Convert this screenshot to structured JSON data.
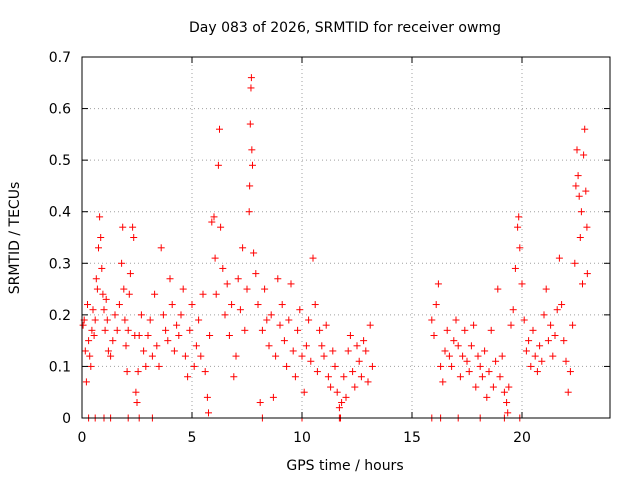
{
  "chart_data": {
    "type": "scatter",
    "title": "Day 083 of 2026, SRMTID for receiver owmg",
    "xlabel": "GPS time / hours",
    "ylabel": "SRMTID / TECUs",
    "xlim": [
      0,
      24
    ],
    "ylim": [
      0,
      0.7
    ],
    "xticks": [
      0,
      5,
      10,
      15,
      20
    ],
    "xtick_labels": [
      "0",
      "5",
      "10",
      "15",
      "20"
    ],
    "yticks": [
      0,
      0.1,
      0.2,
      0.3,
      0.4,
      0.5,
      0.6,
      0.7
    ],
    "ytick_labels": [
      "0",
      "0.1",
      "0.2",
      "0.3",
      "0.4",
      "0.5",
      "0.6",
      "0.7"
    ],
    "grid": true,
    "marker": "+",
    "color": "#ff0000",
    "series": [
      {
        "name": "SRMTID",
        "points": [
          [
            0.05,
            0.18
          ],
          [
            0.1,
            0.19
          ],
          [
            0.15,
            0.13
          ],
          [
            0.2,
            0.07
          ],
          [
            0.25,
            0.22
          ],
          [
            0.3,
            0.15
          ],
          [
            0.35,
            0.12
          ],
          [
            0.4,
            0.1
          ],
          [
            0.45,
            0.17
          ],
          [
            0.5,
            0.21
          ],
          [
            0.55,
            0.16
          ],
          [
            0.6,
            0.19
          ],
          [
            0.65,
            0.27
          ],
          [
            0.7,
            0.25
          ],
          [
            0.75,
            0.33
          ],
          [
            0.8,
            0.39
          ],
          [
            0.85,
            0.35
          ],
          [
            0.9,
            0.29
          ],
          [
            0.95,
            0.24
          ],
          [
            1.0,
            0.21
          ],
          [
            1.05,
            0.17
          ],
          [
            1.1,
            0.23
          ],
          [
            1.15,
            0.19
          ],
          [
            1.2,
            0.13
          ],
          [
            1.3,
            0.12
          ],
          [
            1.4,
            0.15
          ],
          [
            1.5,
            0.2
          ],
          [
            1.6,
            0.17
          ],
          [
            1.7,
            0.22
          ],
          [
            1.8,
            0.3
          ],
          [
            1.85,
            0.37
          ],
          [
            1.9,
            0.25
          ],
          [
            1.95,
            0.19
          ],
          [
            2.0,
            0.14
          ],
          [
            2.05,
            0.09
          ],
          [
            2.1,
            0.17
          ],
          [
            2.15,
            0.24
          ],
          [
            2.2,
            0.28
          ],
          [
            2.3,
            0.37
          ],
          [
            2.35,
            0.35
          ],
          [
            2.4,
            0.16
          ],
          [
            2.45,
            0.05
          ],
          [
            2.5,
            0.03
          ],
          [
            2.55,
            0.09
          ],
          [
            2.6,
            0.16
          ],
          [
            2.7,
            0.2
          ],
          [
            2.8,
            0.13
          ],
          [
            2.9,
            0.1
          ],
          [
            3.0,
            0.16
          ],
          [
            3.1,
            0.19
          ],
          [
            3.2,
            0.12
          ],
          [
            3.3,
            0.24
          ],
          [
            3.4,
            0.14
          ],
          [
            3.5,
            0.1
          ],
          [
            3.6,
            0.33
          ],
          [
            3.7,
            0.2
          ],
          [
            3.8,
            0.17
          ],
          [
            3.9,
            0.15
          ],
          [
            4.0,
            0.27
          ],
          [
            4.1,
            0.22
          ],
          [
            4.2,
            0.13
          ],
          [
            4.3,
            0.18
          ],
          [
            4.4,
            0.16
          ],
          [
            4.5,
            0.2
          ],
          [
            4.6,
            0.25
          ],
          [
            4.7,
            0.12
          ],
          [
            4.8,
            0.08
          ],
          [
            4.9,
            0.17
          ],
          [
            5.0,
            0.22
          ],
          [
            5.1,
            0.1
          ],
          [
            5.2,
            0.14
          ],
          [
            5.3,
            0.19
          ],
          [
            5.4,
            0.12
          ],
          [
            5.5,
            0.24
          ],
          [
            5.6,
            0.09
          ],
          [
            5.7,
            0.04
          ],
          [
            5.75,
            0.01
          ],
          [
            5.8,
            0.16
          ],
          [
            5.9,
            0.38
          ],
          [
            6.0,
            0.39
          ],
          [
            6.05,
            0.31
          ],
          [
            6.1,
            0.24
          ],
          [
            6.2,
            0.49
          ],
          [
            6.25,
            0.56
          ],
          [
            6.3,
            0.37
          ],
          [
            6.4,
            0.29
          ],
          [
            6.5,
            0.2
          ],
          [
            6.6,
            0.26
          ],
          [
            6.7,
            0.16
          ],
          [
            6.8,
            0.22
          ],
          [
            6.9,
            0.08
          ],
          [
            7.0,
            0.12
          ],
          [
            7.1,
            0.27
          ],
          [
            7.2,
            0.21
          ],
          [
            7.3,
            0.33
          ],
          [
            7.4,
            0.17
          ],
          [
            7.5,
            0.25
          ],
          [
            7.6,
            0.4
          ],
          [
            7.62,
            0.45
          ],
          [
            7.65,
            0.57
          ],
          [
            7.68,
            0.64
          ],
          [
            7.7,
            0.66
          ],
          [
            7.72,
            0.52
          ],
          [
            7.75,
            0.49
          ],
          [
            7.8,
            0.32
          ],
          [
            7.9,
            0.28
          ],
          [
            8.0,
            0.22
          ],
          [
            8.1,
            0.03
          ],
          [
            8.2,
            0.17
          ],
          [
            8.3,
            0.25
          ],
          [
            8.4,
            0.19
          ],
          [
            8.5,
            0.14
          ],
          [
            8.6,
            0.2
          ],
          [
            8.7,
            0.04
          ],
          [
            8.8,
            0.12
          ],
          [
            8.9,
            0.27
          ],
          [
            9.0,
            0.18
          ],
          [
            9.1,
            0.22
          ],
          [
            9.2,
            0.15
          ],
          [
            9.3,
            0.1
          ],
          [
            9.4,
            0.19
          ],
          [
            9.5,
            0.26
          ],
          [
            9.6,
            0.13
          ],
          [
            9.7,
            0.08
          ],
          [
            9.8,
            0.17
          ],
          [
            9.9,
            0.21
          ],
          [
            10.0,
            0.12
          ],
          [
            10.1,
            0.05
          ],
          [
            10.2,
            0.14
          ],
          [
            10.3,
            0.19
          ],
          [
            10.4,
            0.11
          ],
          [
            10.5,
            0.31
          ],
          [
            10.6,
            0.22
          ],
          [
            10.7,
            0.09
          ],
          [
            10.8,
            0.17
          ],
          [
            10.9,
            0.14
          ],
          [
            11.0,
            0.12
          ],
          [
            11.1,
            0.18
          ],
          [
            11.2,
            0.08
          ],
          [
            11.3,
            0.06
          ],
          [
            11.4,
            0.13
          ],
          [
            11.5,
            0.1
          ],
          [
            11.6,
            0.05
          ],
          [
            11.7,
            0.02
          ],
          [
            11.75,
            0.0
          ],
          [
            11.8,
            0.03
          ],
          [
            11.9,
            0.08
          ],
          [
            12.0,
            0.04
          ],
          [
            12.1,
            0.13
          ],
          [
            12.2,
            0.16
          ],
          [
            12.3,
            0.09
          ],
          [
            12.4,
            0.06
          ],
          [
            12.5,
            0.14
          ],
          [
            12.6,
            0.11
          ],
          [
            12.7,
            0.08
          ],
          [
            12.8,
            0.15
          ],
          [
            12.9,
            0.13
          ],
          [
            13.0,
            0.07
          ],
          [
            13.1,
            0.18
          ],
          [
            13.2,
            0.1
          ],
          [
            15.9,
            0.19
          ],
          [
            16.0,
            0.16
          ],
          [
            16.1,
            0.22
          ],
          [
            16.2,
            0.26
          ],
          [
            16.3,
            0.1
          ],
          [
            16.4,
            0.07
          ],
          [
            16.5,
            0.13
          ],
          [
            16.6,
            0.17
          ],
          [
            16.7,
            0.12
          ],
          [
            16.8,
            0.1
          ],
          [
            16.9,
            0.15
          ],
          [
            17.0,
            0.19
          ],
          [
            17.1,
            0.14
          ],
          [
            17.2,
            0.08
          ],
          [
            17.3,
            0.12
          ],
          [
            17.4,
            0.17
          ],
          [
            17.5,
            0.11
          ],
          [
            17.6,
            0.09
          ],
          [
            17.7,
            0.14
          ],
          [
            17.8,
            0.18
          ],
          [
            17.9,
            0.06
          ],
          [
            18.0,
            0.12
          ],
          [
            18.1,
            0.1
          ],
          [
            18.2,
            0.08
          ],
          [
            18.3,
            0.13
          ],
          [
            18.4,
            0.04
          ],
          [
            18.5,
            0.09
          ],
          [
            18.6,
            0.17
          ],
          [
            18.7,
            0.06
          ],
          [
            18.8,
            0.11
          ],
          [
            18.9,
            0.25
          ],
          [
            19.0,
            0.08
          ],
          [
            19.1,
            0.12
          ],
          [
            19.2,
            0.05
          ],
          [
            19.3,
            0.03
          ],
          [
            19.35,
            0.01
          ],
          [
            19.4,
            0.06
          ],
          [
            19.5,
            0.18
          ],
          [
            19.6,
            0.21
          ],
          [
            19.7,
            0.29
          ],
          [
            19.8,
            0.37
          ],
          [
            19.85,
            0.39
          ],
          [
            19.9,
            0.33
          ],
          [
            20.0,
            0.26
          ],
          [
            20.1,
            0.19
          ],
          [
            20.2,
            0.13
          ],
          [
            20.3,
            0.15
          ],
          [
            20.4,
            0.1
          ],
          [
            20.5,
            0.17
          ],
          [
            20.6,
            0.12
          ],
          [
            20.7,
            0.09
          ],
          [
            20.8,
            0.14
          ],
          [
            20.9,
            0.11
          ],
          [
            21.0,
            0.2
          ],
          [
            21.1,
            0.25
          ],
          [
            21.2,
            0.15
          ],
          [
            21.3,
            0.18
          ],
          [
            21.4,
            0.12
          ],
          [
            21.5,
            0.16
          ],
          [
            21.6,
            0.21
          ],
          [
            21.7,
            0.31
          ],
          [
            21.8,
            0.22
          ],
          [
            21.9,
            0.15
          ],
          [
            22.0,
            0.11
          ],
          [
            22.1,
            0.05
          ],
          [
            22.2,
            0.09
          ],
          [
            22.3,
            0.18
          ],
          [
            22.4,
            0.3
          ],
          [
            22.45,
            0.45
          ],
          [
            22.5,
            0.52
          ],
          [
            22.55,
            0.47
          ],
          [
            22.6,
            0.43
          ],
          [
            22.65,
            0.35
          ],
          [
            22.7,
            0.4
          ],
          [
            22.75,
            0.26
          ],
          [
            22.8,
            0.51
          ],
          [
            22.85,
            0.56
          ],
          [
            22.9,
            0.44
          ],
          [
            22.95,
            0.37
          ],
          [
            22.97,
            0.28
          ],
          [
            0.3,
            0.0
          ],
          [
            0.6,
            0.0
          ],
          [
            1.0,
            0.0
          ],
          [
            1.3,
            0.0
          ],
          [
            2.1,
            0.0
          ],
          [
            2.6,
            0.0
          ],
          [
            3.2,
            0.0
          ],
          [
            8.2,
            0.0
          ],
          [
            10.0,
            0.0
          ],
          [
            11.7,
            0.0
          ],
          [
            15.9,
            0.0
          ],
          [
            16.3,
            0.0
          ],
          [
            17.1,
            0.0
          ],
          [
            18.1,
            0.0
          ],
          [
            19.2,
            0.0
          ],
          [
            19.9,
            0.0
          ]
        ]
      }
    ]
  }
}
